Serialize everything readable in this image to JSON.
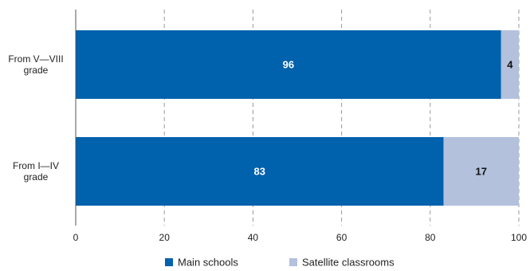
{
  "chart_data": {
    "type": "bar",
    "orientation": "horizontal",
    "stacked": true,
    "categories": [
      [
        "From V—VIII",
        "grade"
      ],
      [
        "From I—IV",
        "grade"
      ]
    ],
    "series": [
      {
        "name": "Main schools",
        "values": [
          96,
          83
        ],
        "color": "#0061ad",
        "label_color": "#ffffff"
      },
      {
        "name": "Satellite classrooms",
        "values": [
          4,
          17
        ],
        "color": "#b3c1dd",
        "label_color": "#111111"
      }
    ],
    "xlim": [
      0,
      100
    ],
    "xticks": [
      "0",
      "20",
      "40",
      "60",
      "80",
      "100"
    ],
    "grid": true,
    "legend": "bottom"
  }
}
